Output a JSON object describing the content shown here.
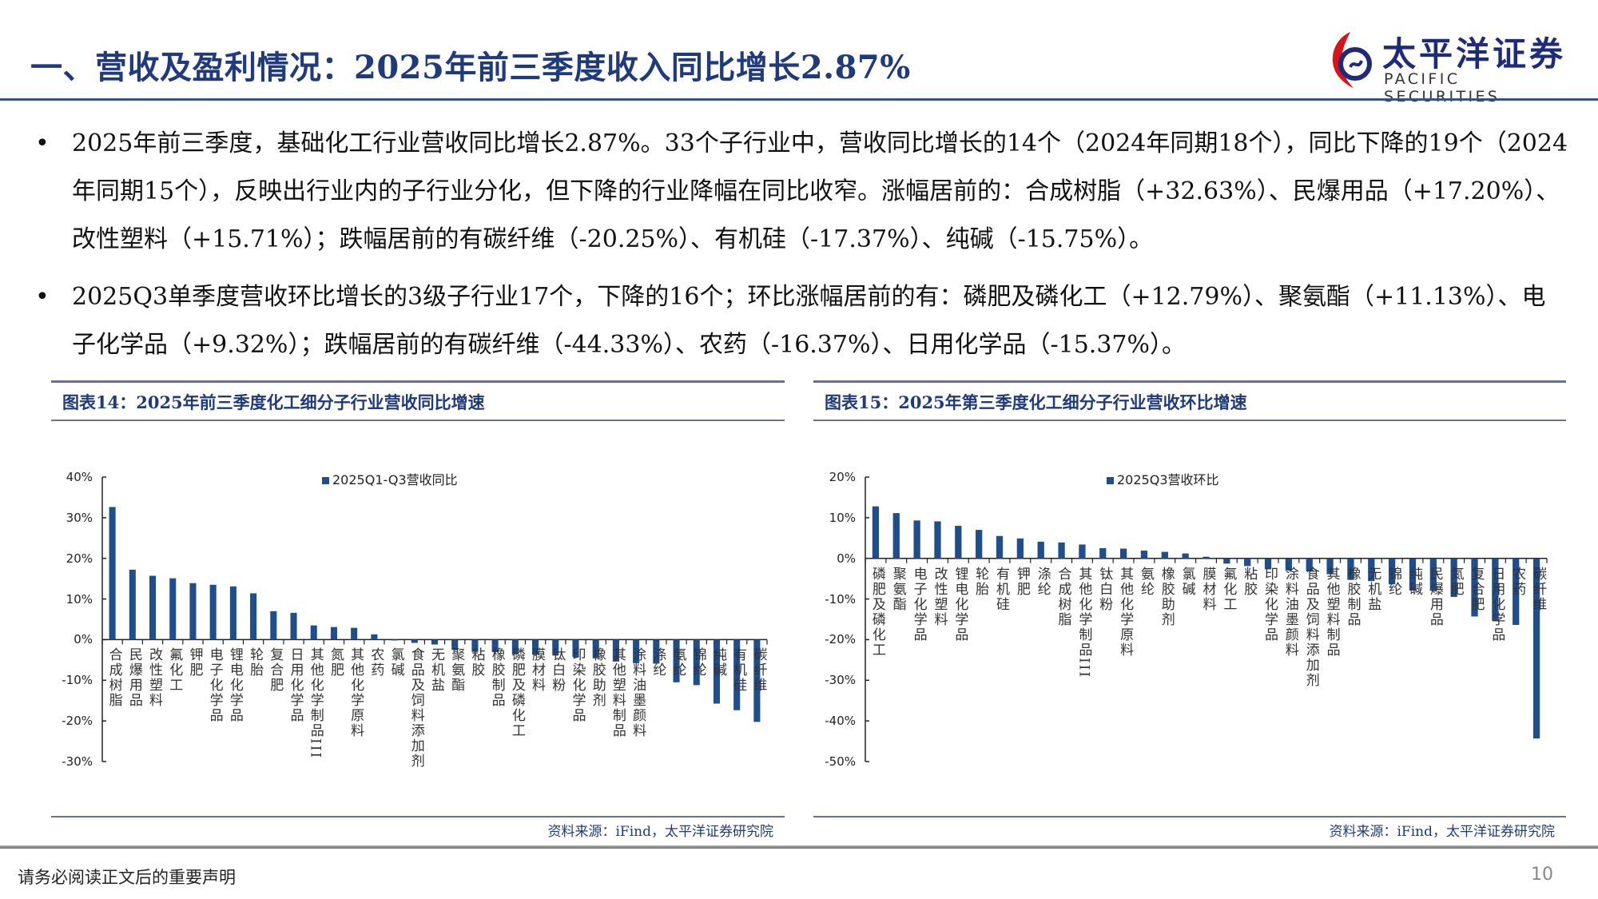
{
  "header": {
    "title": "一、营收及盈利情况：2025年前三季度收入同比增长2.87%",
    "logo_cn": "太平洋证券",
    "logo_en": "PACIFIC SECURITIES"
  },
  "bullets": [
    "2025年前三季度，基础化工行业营收同比增长2.87%。33个子行业中，营收同比增长的14个（2024年同期18个），同比下降的19个（2024年同期15个），反映出行业内的子行业分化，但下降的行业降幅在同比收窄。涨幅居前的：合成树脂（+32.63%）、民爆用品（+17.20%）、改性塑料（+15.71%）；跌幅居前的有碳纤维（-20.25%）、有机硅（-17.37%）、纯碱（-15.75%）。",
    "2025Q3单季度营收环比增长的3级子行业17个，下降的16个；环比涨幅居前的有：磷肥及磷化工（+12.79%）、聚氨酯（+11.13%）、电子化学品（+9.32%）；跌幅居前的有碳纤维（-44.33%）、农药（-16.37%）、日用化学品（-15.37%）。"
  ],
  "panels": [
    {
      "title": "图表14：2025年前三季度化工细分子行业营收同比增速",
      "source": "资料来源：iFind，太平洋证券研究院"
    },
    {
      "title": "图表15：2025年第三季度化工细分子行业营收环比增速",
      "source": "资料来源：iFind，太平洋证券研究院"
    }
  ],
  "footer": {
    "disclaimer": "请务必阅读正文后的重要声明",
    "page": "10"
  },
  "colors": {
    "bar": "#1f4e8c",
    "title": "#1f3a7d",
    "header_line": "#2e5597",
    "logo_red": "#d7141a"
  },
  "chart_data": [
    {
      "type": "bar",
      "legend": "2025Q1-Q3营收同比",
      "legend_position": "top",
      "ylim": [
        -30,
        40
      ],
      "yticks": [
        "40%",
        "30%",
        "20%",
        "10%",
        "0%",
        "-10%",
        "-20%",
        "-30%"
      ],
      "ytick_values": [
        40,
        30,
        20,
        10,
        0,
        -10,
        -20,
        -30
      ],
      "grid": false,
      "categories": [
        "合成树脂",
        "民爆用品",
        "改性塑料",
        "氟化工",
        "钾肥",
        "电子化学品",
        "锂电化学品",
        "轮胎",
        "复合肥",
        "日用化学品",
        "其他化学制品III",
        "氮肥",
        "其他化学原料",
        "农药",
        "氯碱",
        "食品及饲料添加剂",
        "无机盐",
        "聚氨酯",
        "粘胶",
        "橡胶制品",
        "磷肥及磷化工",
        "膜材料",
        "钛白粉",
        "印染化学品",
        "橡胶助剂",
        "其他塑料制品",
        "涂料油墨颜料",
        "涤纶",
        "氨纶",
        "锦纶",
        "纯碱",
        "有机硅",
        "碳纤维"
      ],
      "values": [
        32.63,
        17.2,
        15.71,
        15.1,
        13.9,
        13.5,
        13.1,
        11.4,
        7.0,
        6.6,
        3.5,
        3.1,
        2.9,
        1.3,
        -0.2,
        -0.8,
        -1.2,
        -2.5,
        -3.0,
        -3.1,
        -3.6,
        -3.7,
        -3.9,
        -4.3,
        -4.6,
        -5.4,
        -5.8,
        -5.9,
        -10.5,
        -11.2,
        -15.75,
        -17.37,
        -20.25
      ]
    },
    {
      "type": "bar",
      "legend": "2025Q3营收环比",
      "legend_position": "top",
      "ylim": [
        -50,
        20
      ],
      "yticks": [
        "20%",
        "10%",
        "0%",
        "-10%",
        "-20%",
        "-30%",
        "-40%",
        "-50%"
      ],
      "ytick_values": [
        20,
        10,
        0,
        -10,
        -20,
        -30,
        -40,
        -50
      ],
      "grid": false,
      "categories": [
        "磷肥及磷化工",
        "聚氨酯",
        "电子化学品",
        "改性塑料",
        "锂电化学品",
        "轮胎",
        "有机硅",
        "钾肥",
        "涤纶",
        "合成树脂",
        "其他化学制品III",
        "钛白粉",
        "其他化学原料",
        "氨纶",
        "橡胶助剂",
        "氯碱",
        "膜材料",
        "氟化工",
        "粘胶",
        "印染化学品",
        "涂料油墨颜料",
        "食品及饲料添加剂",
        "其他塑料制品",
        "橡胶制品",
        "无机盐",
        "锦纶",
        "纯碱",
        "民爆用品",
        "氮肥",
        "复合肥",
        "日用化学品",
        "农药",
        "碳纤维"
      ],
      "values": [
        12.79,
        11.13,
        9.32,
        9.1,
        8.0,
        7.0,
        5.5,
        4.9,
        4.1,
        3.9,
        3.4,
        2.5,
        2.4,
        1.9,
        1.6,
        1.2,
        0.4,
        -1.3,
        -1.9,
        -2.7,
        -3.0,
        -3.2,
        -3.9,
        -5.3,
        -5.6,
        -6.4,
        -7.9,
        -8.0,
        -9.5,
        -14.3,
        -15.37,
        -16.37,
        -44.33
      ]
    }
  ]
}
